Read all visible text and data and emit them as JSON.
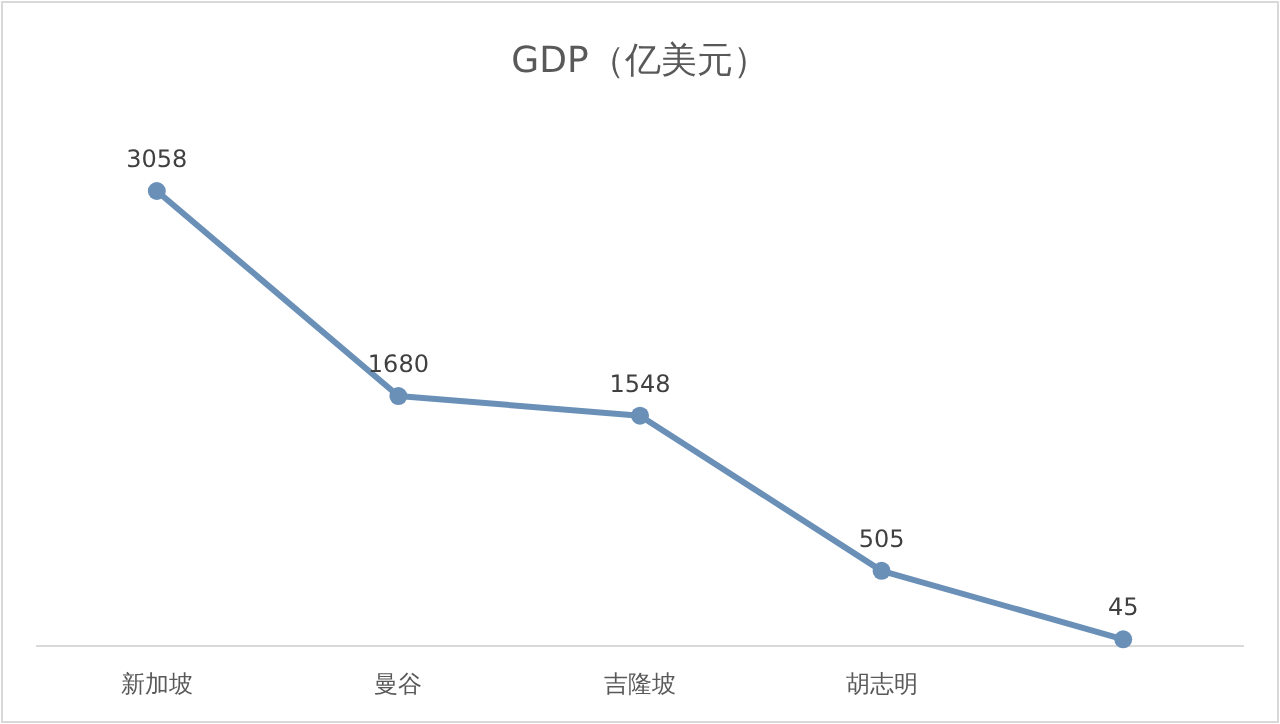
{
  "chart_data": {
    "type": "line",
    "title": "GDP（亿美元）",
    "categories": [
      "新加坡",
      "曼谷",
      "吉隆坡",
      "胡志明",
      null
    ],
    "series": [
      {
        "color": "#6a90b8",
        "values": [
          3058,
          1680,
          1548,
          505,
          45
        ]
      }
    ],
    "data_labels": true,
    "marker": "circle",
    "line_style": "solid",
    "grid": false
  }
}
